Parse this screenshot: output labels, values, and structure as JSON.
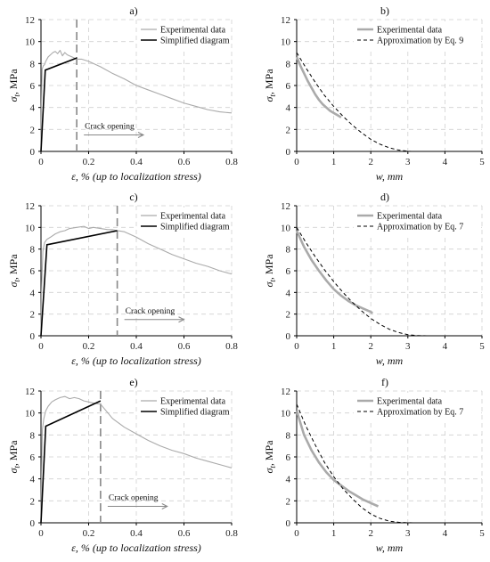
{
  "colors": {
    "experimental": "#aaaaaa",
    "simplified": "#000000",
    "approximation": "#000000",
    "localization_line": "#888888",
    "grid": "#d0d0d0",
    "arrow": "#888888"
  },
  "chart_data": [
    {
      "type": "line",
      "panel": "a)",
      "xlabel": "ε, % (up to localization stress)",
      "ylabel": "σt, MPa",
      "xlim": [
        0,
        0.8
      ],
      "ylim": [
        0,
        12
      ],
      "xticks": [
        "0",
        "0.2",
        "0.4",
        "0.6",
        "0.8"
      ],
      "yticks": [
        "0",
        "2",
        "4",
        "6",
        "8",
        "10",
        "12"
      ],
      "grid": true,
      "legend_position": "top-right",
      "annotation": "Crack opening",
      "localization_strain": 0.15,
      "series": [
        {
          "name": "Experimental data",
          "style": "gray-solid",
          "x": [
            0.0,
            0.0015,
            0.005,
            0.01,
            0.015,
            0.02,
            0.03,
            0.04,
            0.05,
            0.06,
            0.07,
            0.08,
            0.09,
            0.1,
            0.11,
            0.12,
            0.13,
            0.14,
            0.15,
            0.17,
            0.2,
            0.25,
            0.3,
            0.35,
            0.4,
            0.45,
            0.5,
            0.55,
            0.6,
            0.65,
            0.7,
            0.75,
            0.8
          ],
          "y": [
            0.0,
            4.0,
            7.5,
            7.8,
            7.9,
            8.2,
            8.6,
            8.8,
            9.0,
            9.1,
            8.9,
            9.2,
            8.7,
            9.0,
            8.8,
            8.7,
            8.6,
            8.5,
            8.4,
            8.4,
            8.2,
            7.7,
            7.1,
            6.6,
            6.0,
            5.6,
            5.2,
            4.8,
            4.4,
            4.1,
            3.8,
            3.6,
            3.5
          ]
        },
        {
          "name": "Simplified diagram",
          "style": "black-solid",
          "x": [
            0.0,
            0.018,
            0.15
          ],
          "y": [
            0.0,
            7.4,
            8.5
          ]
        }
      ]
    },
    {
      "type": "line",
      "panel": "b)",
      "xlabel": "w, mm",
      "ylabel": "σt, MPa",
      "xlim": [
        0,
        5
      ],
      "ylim": [
        0,
        12
      ],
      "xticks": [
        "0",
        "1",
        "2",
        "3",
        "4",
        "5"
      ],
      "yticks": [
        "0",
        "2",
        "4",
        "6",
        "8",
        "10",
        "12"
      ],
      "grid": true,
      "legend_position": "top-right",
      "series": [
        {
          "name": "Experimental data",
          "style": "gray-solid",
          "x": [
            0.0,
            0.1,
            0.2,
            0.3,
            0.4,
            0.5,
            0.6,
            0.7,
            0.8,
            0.9,
            1.0,
            1.1,
            1.2
          ],
          "y": [
            8.6,
            7.8,
            7.1,
            6.4,
            5.8,
            5.2,
            4.7,
            4.3,
            4.0,
            3.7,
            3.5,
            3.3,
            3.1
          ]
        },
        {
          "name": "Approximation by Eq. 9",
          "style": "black-dashed",
          "x": [
            0.0,
            0.25,
            0.5,
            0.75,
            1.0,
            1.25,
            1.5,
            1.75,
            2.0,
            2.25,
            2.5,
            2.75,
            3.0,
            3.1
          ],
          "y": [
            9.0,
            7.6,
            6.3,
            5.1,
            4.1,
            3.2,
            2.4,
            1.7,
            1.1,
            0.65,
            0.33,
            0.12,
            0.02,
            0.0
          ]
        }
      ]
    },
    {
      "type": "line",
      "panel": "c)",
      "xlabel": "ε, % (up to localization stress)",
      "ylabel": "σt, MPa",
      "xlim": [
        0,
        0.8
      ],
      "ylim": [
        0,
        12
      ],
      "xticks": [
        "0",
        "0.2",
        "0.4",
        "0.6",
        "0.8"
      ],
      "yticks": [
        "0",
        "2",
        "4",
        "6",
        "8",
        "10",
        "12"
      ],
      "grid": true,
      "legend_position": "top-right",
      "annotation": "Crack opening",
      "localization_strain": 0.32,
      "series": [
        {
          "name": "Experimental data",
          "style": "gray-solid",
          "x": [
            0.0,
            0.002,
            0.008,
            0.015,
            0.025,
            0.04,
            0.06,
            0.08,
            0.1,
            0.12,
            0.15,
            0.18,
            0.2,
            0.22,
            0.25,
            0.28,
            0.3,
            0.32,
            0.35,
            0.4,
            0.45,
            0.5,
            0.55,
            0.6,
            0.65,
            0.7,
            0.75,
            0.8
          ],
          "y": [
            0.0,
            4.0,
            7.8,
            8.6,
            8.9,
            9.1,
            9.4,
            9.6,
            9.7,
            9.9,
            10.0,
            10.1,
            9.9,
            10.0,
            9.9,
            9.8,
            9.8,
            9.7,
            9.6,
            9.1,
            8.5,
            8.0,
            7.5,
            7.1,
            6.7,
            6.4,
            6.0,
            5.7
          ]
        },
        {
          "name": "Simplified diagram",
          "style": "black-solid",
          "x": [
            0.0,
            0.025,
            0.32
          ],
          "y": [
            0.0,
            8.4,
            9.7
          ]
        }
      ]
    },
    {
      "type": "line",
      "panel": "d)",
      "xlabel": "w, mm",
      "ylabel": "σt, MPa",
      "xlim": [
        0,
        5
      ],
      "ylim": [
        0,
        12
      ],
      "xticks": [
        "0",
        "1",
        "2",
        "3",
        "4",
        "5"
      ],
      "yticks": [
        "0",
        "2",
        "4",
        "6",
        "8",
        "10",
        "12"
      ],
      "grid": true,
      "legend_position": "top-right",
      "series": [
        {
          "name": "Experimental data",
          "style": "gray-solid",
          "x": [
            0.0,
            0.2,
            0.4,
            0.6,
            0.8,
            1.0,
            1.2,
            1.4,
            1.6,
            1.8,
            2.0,
            2.05
          ],
          "y": [
            9.7,
            8.2,
            7.0,
            6.0,
            5.1,
            4.3,
            3.7,
            3.2,
            2.8,
            2.5,
            2.2,
            2.1
          ]
        },
        {
          "name": "Approximation by Eq. 7",
          "style": "black-dashed",
          "x": [
            0.0,
            0.25,
            0.5,
            0.75,
            1.0,
            1.25,
            1.5,
            1.75,
            2.0,
            2.25,
            2.5,
            2.75,
            3.0,
            3.25,
            3.5
          ],
          "y": [
            10.0,
            8.6,
            7.3,
            6.1,
            5.0,
            4.0,
            3.1,
            2.3,
            1.6,
            1.05,
            0.6,
            0.3,
            0.1,
            0.02,
            0.0
          ]
        }
      ]
    },
    {
      "type": "line",
      "panel": "e)",
      "xlabel": "ε, % (up to localization stress)",
      "ylabel": "σt, MPa",
      "xlim": [
        0,
        0.8
      ],
      "ylim": [
        0,
        12
      ],
      "xticks": [
        "0",
        "0.2",
        "0.4",
        "0.6",
        "0.8"
      ],
      "yticks": [
        "0",
        "2",
        "4",
        "6",
        "8",
        "10",
        "12"
      ],
      "grid": true,
      "legend_position": "top-right",
      "annotation": "Crack opening",
      "localization_strain": 0.25,
      "series": [
        {
          "name": "Experimental data",
          "style": "gray-solid",
          "x": [
            0.0,
            0.002,
            0.006,
            0.012,
            0.02,
            0.03,
            0.045,
            0.06,
            0.08,
            0.1,
            0.12,
            0.14,
            0.16,
            0.18,
            0.2,
            0.22,
            0.25,
            0.3,
            0.35,
            0.4,
            0.45,
            0.5,
            0.55,
            0.6,
            0.65,
            0.7,
            0.75,
            0.8
          ],
          "y": [
            0.0,
            4.0,
            8.5,
            9.5,
            10.2,
            10.6,
            11.0,
            11.2,
            11.4,
            11.5,
            11.3,
            11.4,
            11.3,
            11.1,
            11.0,
            10.9,
            10.8,
            9.5,
            8.7,
            8.1,
            7.5,
            7.0,
            6.6,
            6.3,
            5.9,
            5.6,
            5.3,
            5.0
          ]
        },
        {
          "name": "Simplified diagram",
          "style": "black-solid",
          "x": [
            0.0,
            0.02,
            0.25
          ],
          "y": [
            0.0,
            8.8,
            11.1
          ]
        }
      ]
    },
    {
      "type": "line",
      "panel": "f)",
      "xlabel": "w, mm",
      "ylabel": "σt, MPa",
      "xlim": [
        0,
        5
      ],
      "ylim": [
        0,
        12
      ],
      "xticks": [
        "0",
        "1",
        "2",
        "3",
        "4",
        "5"
      ],
      "yticks": [
        "0",
        "2",
        "4",
        "6",
        "8",
        "10",
        "12"
      ],
      "grid": true,
      "legend_position": "top-right",
      "series": [
        {
          "name": "Experimental data",
          "style": "gray-solid",
          "x": [
            0.0,
            0.2,
            0.4,
            0.6,
            0.8,
            1.0,
            1.2,
            1.4,
            1.6,
            1.8,
            2.0,
            2.2
          ],
          "y": [
            10.2,
            8.0,
            6.6,
            5.5,
            4.6,
            3.9,
            3.4,
            2.9,
            2.5,
            2.1,
            1.8,
            1.5
          ]
        },
        {
          "name": "Approximation by Eq. 7",
          "style": "black-dashed",
          "x": [
            0.0,
            0.25,
            0.5,
            0.75,
            1.0,
            1.25,
            1.5,
            1.75,
            2.0,
            2.25,
            2.5,
            2.75,
            3.0,
            3.25
          ],
          "y": [
            10.8,
            8.8,
            7.1,
            5.5,
            4.2,
            3.1,
            2.2,
            1.4,
            0.8,
            0.4,
            0.15,
            0.05,
            0.01,
            0.0
          ]
        }
      ]
    }
  ]
}
